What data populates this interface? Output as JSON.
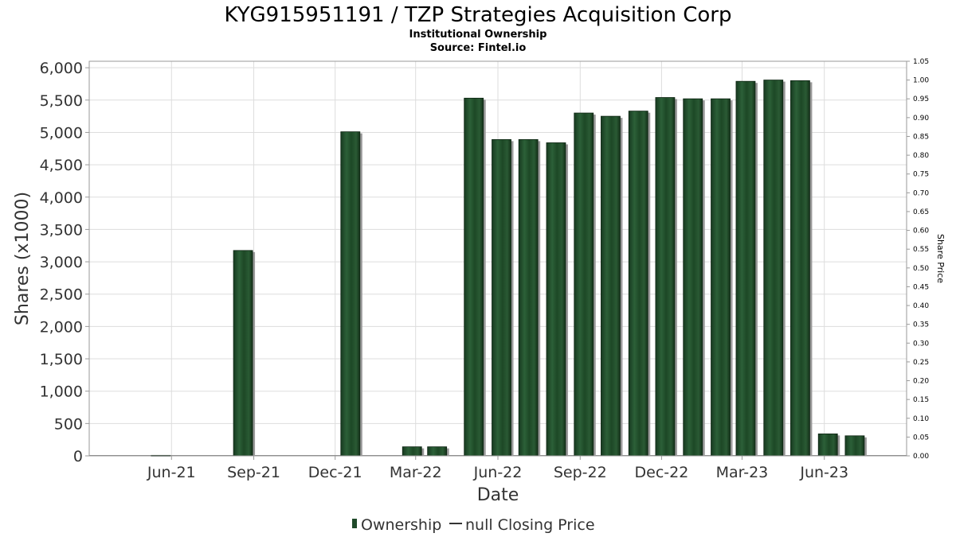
{
  "chart_data": {
    "type": "bar",
    "title": "KYG915951191 / TZP Strategies Acquisition Corp",
    "subtitle_lines": [
      "Institutional Ownership",
      "Source: Fintel.io"
    ],
    "xlabel": "Date",
    "ylabel": "Shares (x1000)",
    "y2label": "Share Price",
    "ylim": [
      0,
      6100
    ],
    "y2lim": [
      0,
      1.05
    ],
    "yticks": [
      0,
      500,
      1000,
      1500,
      2000,
      2500,
      3000,
      3500,
      4000,
      4500,
      5000,
      5500,
      6000
    ],
    "yticks_labels": [
      "0",
      "500",
      "1,000",
      "1,500",
      "2,000",
      "2,500",
      "3,000",
      "3,500",
      "4,000",
      "4,500",
      "5,000",
      "5,500",
      "6,000"
    ],
    "y2ticks": [
      0,
      0.05,
      0.1,
      0.15,
      0.2,
      0.25,
      0.3,
      0.35,
      0.4,
      0.45,
      0.5,
      0.55,
      0.6,
      0.65,
      0.7,
      0.75,
      0.8,
      0.85,
      0.9,
      0.95,
      1.0,
      1.05
    ],
    "y2ticks_labels": [
      "0.00",
      "0.05",
      "0.10",
      "0.15",
      "0.20",
      "0.25",
      "0.30",
      "0.35",
      "0.40",
      "0.45",
      "0.50",
      "0.55",
      "0.60",
      "0.65",
      "0.70",
      "0.75",
      "0.80",
      "0.85",
      "0.90",
      "0.95",
      "1.00",
      "1.05"
    ],
    "xrange": [
      "2021-03-01",
      "2023-09-01"
    ],
    "xticks": [
      {
        "date": "2021-06-01",
        "label": "Jun-21"
      },
      {
        "date": "2021-09-01",
        "label": "Sep-21"
      },
      {
        "date": "2021-12-01",
        "label": "Dec-21"
      },
      {
        "date": "2022-03-01",
        "label": "Mar-22"
      },
      {
        "date": "2022-06-01",
        "label": "Jun-22"
      },
      {
        "date": "2022-09-01",
        "label": "Sep-22"
      },
      {
        "date": "2022-12-01",
        "label": "Dec-22"
      },
      {
        "date": "2023-03-01",
        "label": "Mar-23"
      },
      {
        "date": "2023-06-01",
        "label": "Jun-23"
      }
    ],
    "grid": true,
    "legend_position": "bottom-center",
    "series": [
      {
        "name": "Ownership",
        "color": "#1f4a2a",
        "points": [
          {
            "date": "2021-05-20",
            "value": 8
          },
          {
            "date": "2021-08-20",
            "value": 3175
          },
          {
            "date": "2021-12-18",
            "value": 5010
          },
          {
            "date": "2022-02-25",
            "value": 140
          },
          {
            "date": "2022-03-25",
            "value": 140
          },
          {
            "date": "2022-05-05",
            "value": 5530
          },
          {
            "date": "2022-06-05",
            "value": 4890
          },
          {
            "date": "2022-07-05",
            "value": 4890
          },
          {
            "date": "2022-08-05",
            "value": 4840
          },
          {
            "date": "2022-09-05",
            "value": 5300
          },
          {
            "date": "2022-10-05",
            "value": 5250
          },
          {
            "date": "2022-11-05",
            "value": 5330
          },
          {
            "date": "2022-12-05",
            "value": 5540
          },
          {
            "date": "2023-01-05",
            "value": 5520
          },
          {
            "date": "2023-02-05",
            "value": 5520
          },
          {
            "date": "2023-03-05",
            "value": 5790
          },
          {
            "date": "2023-04-05",
            "value": 5810
          },
          {
            "date": "2023-05-05",
            "value": 5800
          },
          {
            "date": "2023-06-05",
            "value": 340
          },
          {
            "date": "2023-07-05",
            "value": 310
          }
        ]
      },
      {
        "name": "null Closing Price",
        "color": "#333333",
        "points": []
      }
    ]
  }
}
